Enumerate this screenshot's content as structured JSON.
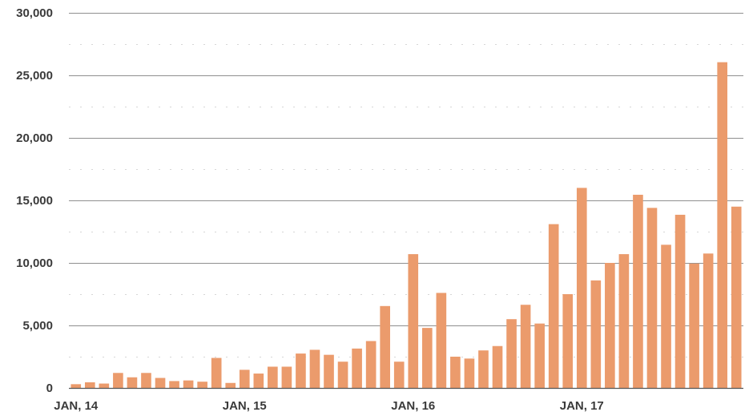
{
  "chart_data": {
    "type": "bar",
    "title": "",
    "xlabel": "",
    "ylabel": "",
    "ylim": [
      0,
      30000
    ],
    "yticks": [
      0,
      5000,
      10000,
      15000,
      20000,
      25000,
      30000
    ],
    "ytick_labels": [
      "0",
      "5,000",
      "10,000",
      "15,000",
      "20,000",
      "25,000",
      "30,000"
    ],
    "xtick_labels": [
      {
        "label": "JAN, 14",
        "index": 0
      },
      {
        "label": "JAN, 15",
        "index": 12
      },
      {
        "label": "JAN, 16",
        "index": 24
      },
      {
        "label": "JAN, 17",
        "index": 36
      }
    ],
    "grid": true,
    "legend": "none",
    "bar_color": "#eb9b6c",
    "values": [
      300,
      450,
      350,
      1200,
      850,
      1200,
      800,
      550,
      600,
      500,
      2400,
      400,
      1450,
      1150,
      1700,
      1700,
      2750,
      3050,
      2650,
      2100,
      3150,
      3750,
      6550,
      2100,
      10700,
      4800,
      7600,
      2500,
      2350,
      3000,
      3350,
      5500,
      6650,
      5150,
      13100,
      7500,
      16000,
      8600,
      10000,
      10700,
      15450,
      14400,
      11450,
      13850,
      9950,
      10750,
      26050,
      14500
    ]
  }
}
